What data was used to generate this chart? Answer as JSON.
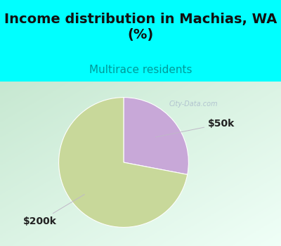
{
  "title": "Income distribution in Machias, WA\n(%)",
  "subtitle": "Multirace residents",
  "title_fontsize": 14,
  "subtitle_fontsize": 11,
  "title_color": "#111111",
  "subtitle_color": "#009999",
  "bg_top_color": "#00ffff",
  "slices": [
    {
      "label": "$50k",
      "value": 28,
      "color": "#c8a8d8"
    },
    {
      "label": "$200k",
      "value": 72,
      "color": "#c8d89a"
    }
  ],
  "label_fontsize": 10,
  "label_color": "#222222",
  "watermark": "City-Data.com",
  "watermark_color": "#aabbcc",
  "arrow_color": "#c0b8c8",
  "chart_bg_left": "#c8e8d0",
  "chart_bg_right": "#e8fff8"
}
